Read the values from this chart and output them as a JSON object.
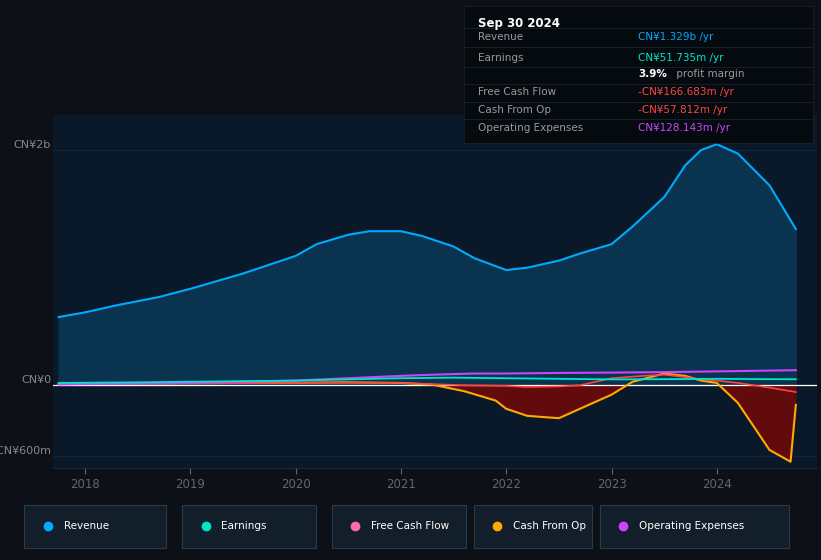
{
  "bg_color": "#0d1117",
  "plot_bg_color": "#0a1929",
  "title": "Sep 30 2024",
  "ylim": [
    -700,
    2300
  ],
  "ytick_positions": [
    -600,
    0,
    2000
  ],
  "ytick_labels": [
    "-CN¥600m",
    "CN¥0",
    "CN¥2b"
  ],
  "xlim_start": 2017.7,
  "xlim_end": 2024.95,
  "years": [
    2018,
    2019,
    2020,
    2021,
    2022,
    2023,
    2024
  ],
  "revenue_x": [
    2017.75,
    2018.0,
    2018.3,
    2018.7,
    2019.0,
    2019.5,
    2020.0,
    2020.2,
    2020.5,
    2020.7,
    2021.0,
    2021.2,
    2021.5,
    2021.7,
    2022.0,
    2022.2,
    2022.5,
    2022.7,
    2023.0,
    2023.2,
    2023.5,
    2023.7,
    2023.85,
    2024.0,
    2024.2,
    2024.5,
    2024.75
  ],
  "revenue_y": [
    580,
    620,
    680,
    750,
    820,
    950,
    1100,
    1200,
    1280,
    1310,
    1310,
    1270,
    1180,
    1080,
    980,
    1000,
    1060,
    1120,
    1200,
    1350,
    1600,
    1870,
    2000,
    2050,
    1970,
    1700,
    1329
  ],
  "earnings_x": [
    2017.75,
    2018.5,
    2019.0,
    2019.5,
    2020.0,
    2020.5,
    2021.0,
    2021.5,
    2022.0,
    2022.5,
    2023.0,
    2023.5,
    2024.0,
    2024.5,
    2024.75
  ],
  "earnings_y": [
    20,
    25,
    30,
    35,
    40,
    50,
    60,
    65,
    60,
    55,
    50,
    52,
    55,
    52,
    51.735
  ],
  "fcf_x": [
    2017.75,
    2018.0,
    2018.5,
    2019.0,
    2019.5,
    2020.0,
    2020.5,
    2021.0,
    2021.3,
    2021.6,
    2021.9,
    2022.0,
    2022.2,
    2022.5,
    2022.7,
    2023.0,
    2023.2,
    2023.5,
    2023.7,
    2023.85,
    2024.0,
    2024.2,
    2024.5,
    2024.7,
    2024.75
  ],
  "fcf_y": [
    10,
    12,
    15,
    18,
    20,
    22,
    25,
    20,
    5,
    -50,
    -130,
    -200,
    -260,
    -280,
    -200,
    -80,
    30,
    100,
    80,
    40,
    20,
    -150,
    -550,
    -650,
    -166.683
  ],
  "cashop_x": [
    2017.75,
    2018.0,
    2018.5,
    2019.0,
    2019.5,
    2020.0,
    2020.5,
    2021.0,
    2021.3,
    2021.6,
    2022.0,
    2022.2,
    2022.5,
    2022.7,
    2023.0,
    2023.3,
    2023.5,
    2023.7,
    2023.85,
    2024.0,
    2024.2,
    2024.5,
    2024.7,
    2024.75
  ],
  "cashop_y": [
    8,
    10,
    12,
    15,
    18,
    20,
    22,
    20,
    10,
    0,
    -5,
    -15,
    -10,
    0,
    60,
    80,
    90,
    70,
    50,
    40,
    20,
    -20,
    -50,
    -57.812
  ],
  "opex_x": [
    2017.75,
    2018.0,
    2018.5,
    2019.0,
    2019.5,
    2020.0,
    2020.5,
    2021.0,
    2021.3,
    2021.7,
    2022.0,
    2022.5,
    2023.0,
    2023.5,
    2024.0,
    2024.5,
    2024.75
  ],
  "opex_y": [
    8,
    10,
    15,
    20,
    30,
    40,
    60,
    80,
    90,
    100,
    100,
    105,
    108,
    112,
    118,
    125,
    128.143
  ],
  "revenue_color": "#00aaff",
  "revenue_fill": "#0a3350",
  "earnings_color": "#00e5cc",
  "fcf_color": "#ffaa00",
  "fcf_fill_neg": "#6b0a0a",
  "cashop_color": "#ff4444",
  "opex_color": "#cc44ff",
  "zero_line_color": "#ffffff",
  "grid_color": "#1e3a4a",
  "tick_color": "#666666",
  "label_color": "#888888",
  "legend_bg": "#131e2b",
  "legend_border": "#2a3a4a",
  "info_bg": "#050a0f",
  "info_border": "#1a2a3a"
}
